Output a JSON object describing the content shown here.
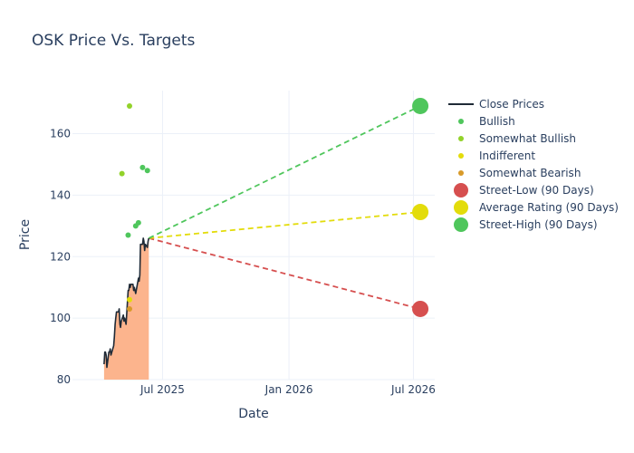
{
  "chart_data": {
    "type": "line",
    "title": "OSK Price Vs. Targets",
    "xlabel": "Date",
    "ylabel": "Price",
    "x_range": [
      "2025-02-20",
      "2026-08-01"
    ],
    "y_range": [
      80,
      174
    ],
    "x_ticks": [
      {
        "date": "2025-07-01",
        "label": "Jul 2025"
      },
      {
        "date": "2026-01-01",
        "label": "Jan 2026"
      },
      {
        "date": "2026-07-01",
        "label": "Jul 2026"
      }
    ],
    "y_ticks": [
      80,
      100,
      120,
      140,
      160
    ],
    "grid": true,
    "legend_position": "right",
    "close_prices": {
      "name": "Close Prices",
      "color": "#1f2a36",
      "fill_color": "#fcb48d",
      "points": [
        [
          "2025-04-07",
          85
        ],
        [
          "2025-04-08",
          89
        ],
        [
          "2025-04-09",
          89
        ],
        [
          "2025-04-10",
          88
        ],
        [
          "2025-04-11",
          84
        ],
        [
          "2025-04-14",
          89
        ],
        [
          "2025-04-15",
          89
        ],
        [
          "2025-04-16",
          90
        ],
        [
          "2025-04-17",
          88
        ],
        [
          "2025-04-21",
          91
        ],
        [
          "2025-04-22",
          94
        ],
        [
          "2025-04-23",
          98
        ],
        [
          "2025-04-24",
          100
        ],
        [
          "2025-04-25",
          102
        ],
        [
          "2025-04-28",
          102
        ],
        [
          "2025-04-29",
          103
        ],
        [
          "2025-04-30",
          98
        ],
        [
          "2025-05-01",
          97
        ],
        [
          "2025-05-02",
          99
        ],
        [
          "2025-05-05",
          101
        ],
        [
          "2025-05-06",
          99
        ],
        [
          "2025-05-07",
          100
        ],
        [
          "2025-05-08",
          99
        ],
        [
          "2025-05-09",
          98
        ],
        [
          "2025-05-12",
          109
        ],
        [
          "2025-05-13",
          109
        ],
        [
          "2025-05-14",
          111
        ],
        [
          "2025-05-15",
          110
        ],
        [
          "2025-05-16",
          111
        ],
        [
          "2025-05-19",
          111
        ],
        [
          "2025-05-20",
          109
        ],
        [
          "2025-05-21",
          110
        ],
        [
          "2025-05-22",
          109
        ],
        [
          "2025-05-23",
          108
        ],
        [
          "2025-05-27",
          113
        ],
        [
          "2025-05-28",
          112
        ],
        [
          "2025-05-29",
          114
        ],
        [
          "2025-05-30",
          124
        ],
        [
          "2025-06-02",
          124
        ],
        [
          "2025-06-03",
          126
        ],
        [
          "2025-06-04",
          125
        ],
        [
          "2025-06-05",
          122
        ],
        [
          "2025-06-06",
          124
        ],
        [
          "2025-06-09",
          123
        ],
        [
          "2025-06-10",
          125
        ],
        [
          "2025-06-11",
          126
        ]
      ]
    },
    "ratings": [
      {
        "category": "Bullish",
        "date": "2025-05-12",
        "value": 127
      },
      {
        "category": "Bullish",
        "date": "2025-05-23",
        "value": 130
      },
      {
        "category": "Bullish",
        "date": "2025-05-27",
        "value": 131
      },
      {
        "category": "Bullish",
        "date": "2025-06-02",
        "value": 149
      },
      {
        "category": "Bullish",
        "date": "2025-06-09",
        "value": 148
      },
      {
        "category": "Somewhat Bullish",
        "date": "2025-05-03",
        "value": 147
      },
      {
        "category": "Somewhat Bullish",
        "date": "2025-05-14",
        "value": 169
      },
      {
        "category": "Indifferent",
        "date": "2025-05-14",
        "value": 106
      },
      {
        "category": "Somewhat Bearish",
        "date": "2025-05-14",
        "value": 103
      }
    ],
    "target_start": {
      "date": "2025-06-11",
      "value": 126
    },
    "targets": [
      {
        "name": "Street-Low (90 Days)",
        "date": "2026-07-11",
        "value": 103,
        "color": "#d64f4f"
      },
      {
        "name": "Average Rating (90 Days)",
        "date": "2026-07-11",
        "value": 134.5,
        "color": "#e3dc0b"
      },
      {
        "name": "Street-High (90 Days)",
        "date": "2026-07-11",
        "value": 169,
        "color": "#4fc65c"
      }
    ],
    "legend": [
      {
        "label": "Close Prices",
        "kind": "line",
        "color": "#1f2a36"
      },
      {
        "label": "Bullish",
        "kind": "dot",
        "color": "#4fc65c"
      },
      {
        "label": "Somewhat Bullish",
        "kind": "dot",
        "color": "#92d22a"
      },
      {
        "label": "Indifferent",
        "kind": "dot",
        "color": "#e3dc0b"
      },
      {
        "label": "Somewhat Bearish",
        "kind": "dot",
        "color": "#d89a29"
      },
      {
        "label": "Street-Low (90 Days)",
        "kind": "big",
        "color": "#d64f4f"
      },
      {
        "label": "Average Rating (90 Days)",
        "kind": "big",
        "color": "#e3dc0b"
      },
      {
        "label": "Street-High (90 Days)",
        "kind": "big",
        "color": "#4fc65c"
      }
    ],
    "category_colors": {
      "Bullish": "#4fc65c",
      "Somewhat Bullish": "#92d22a",
      "Indifferent": "#e3dc0b",
      "Somewhat Bearish": "#d89a29"
    }
  }
}
